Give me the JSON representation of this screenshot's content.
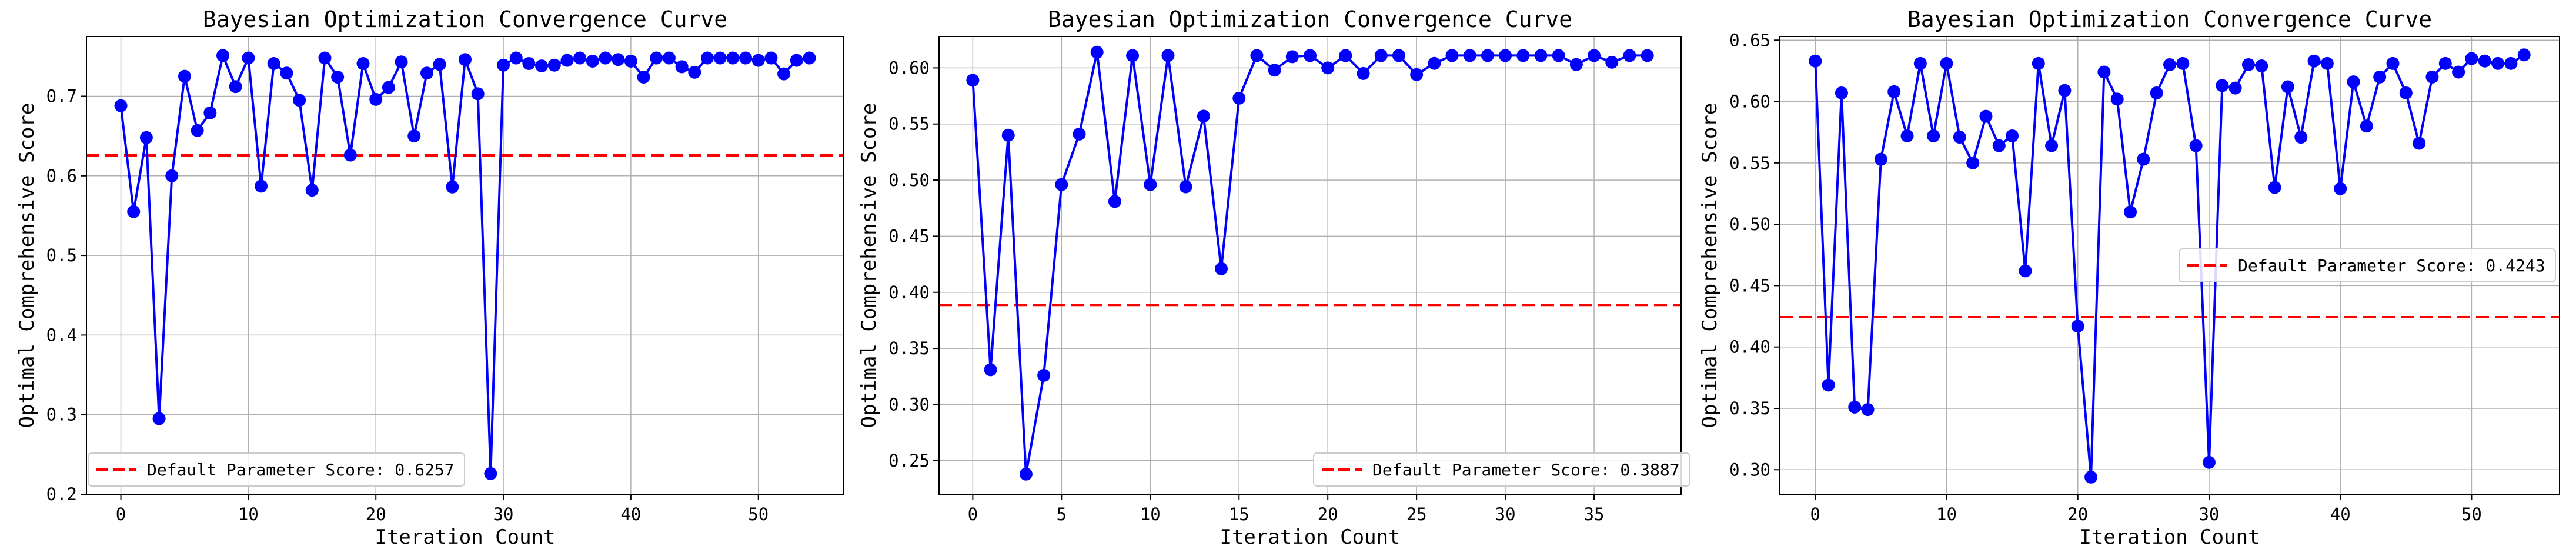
{
  "chart_data": [
    {
      "type": "line",
      "title": "Bayesian Optimization Convergence Curve",
      "xlabel": "Iteration Count",
      "ylabel": "Optimal Comprehensive Score",
      "xlim": [
        -2.7,
        56.7
      ],
      "ylim": [
        0.2,
        0.775
      ],
      "xticks": [
        0,
        10,
        20,
        30,
        40,
        50
      ],
      "yticks": [
        0.2,
        0.3,
        0.4,
        0.5,
        0.6,
        0.7
      ],
      "ytick_labels": [
        "0.2",
        "0.3",
        "0.4",
        "0.5",
        "0.6",
        "0.7"
      ],
      "grid": true,
      "legend_position": "lower-left",
      "series": [
        {
          "color": "#0000ff",
          "x": [
            0,
            1,
            2,
            3,
            4,
            5,
            6,
            7,
            8,
            9,
            10,
            11,
            12,
            13,
            14,
            15,
            16,
            17,
            18,
            19,
            20,
            21,
            22,
            23,
            24,
            25,
            26,
            27,
            28,
            29,
            30,
            31,
            32,
            33,
            34,
            35,
            36,
            37,
            38,
            39,
            40,
            41,
            42,
            43,
            44,
            45,
            46,
            47,
            48,
            49,
            50,
            51,
            52,
            53,
            54
          ],
          "y": [
            0.688,
            0.555,
            0.648,
            0.295,
            0.6,
            0.725,
            0.657,
            0.679,
            0.751,
            0.712,
            0.748,
            0.587,
            0.741,
            0.729,
            0.695,
            0.582,
            0.748,
            0.724,
            0.626,
            0.741,
            0.696,
            0.711,
            0.743,
            0.65,
            0.729,
            0.74,
            0.586,
            0.746,
            0.703,
            0.226,
            0.739,
            0.748,
            0.741,
            0.738,
            0.739,
            0.745,
            0.748,
            0.744,
            0.748,
            0.746,
            0.744,
            0.724,
            0.748,
            0.748,
            0.737,
            0.73,
            0.748,
            0.748,
            0.748,
            0.748,
            0.745,
            0.748,
            0.728,
            0.745,
            0.748
          ]
        }
      ],
      "reference": {
        "label": "Default Parameter Score: 0.6257",
        "value": 0.6257,
        "color": "#ff0000"
      }
    },
    {
      "type": "line",
      "title": "Bayesian Optimization Convergence Curve",
      "xlabel": "Iteration Count",
      "ylabel": "Optimal Comprehensive Score",
      "xlim": [
        -1.9,
        39.9
      ],
      "ylim": [
        0.22,
        0.628
      ],
      "xticks": [
        0,
        5,
        10,
        15,
        20,
        25,
        30,
        35
      ],
      "yticks": [
        0.25,
        0.3,
        0.35,
        0.4,
        0.45,
        0.5,
        0.55,
        0.6
      ],
      "ytick_labels": [
        "0.25",
        "0.30",
        "0.35",
        "0.40",
        "0.45",
        "0.50",
        "0.55",
        "0.60"
      ],
      "grid": true,
      "legend_position": "lower-right",
      "series": [
        {
          "color": "#0000ff",
          "x": [
            0,
            1,
            2,
            3,
            4,
            5,
            6,
            7,
            8,
            9,
            10,
            11,
            12,
            13,
            14,
            15,
            16,
            17,
            18,
            19,
            20,
            21,
            22,
            23,
            24,
            25,
            26,
            27,
            28,
            29,
            30,
            31,
            32,
            33,
            34,
            35,
            36,
            37,
            38
          ],
          "y": [
            0.589,
            0.331,
            0.54,
            0.238,
            0.326,
            0.496,
            0.541,
            0.614,
            0.481,
            0.611,
            0.496,
            0.611,
            0.494,
            0.557,
            0.421,
            0.573,
            0.611,
            0.598,
            0.61,
            0.611,
            0.6,
            0.611,
            0.595,
            0.611,
            0.611,
            0.594,
            0.604,
            0.611,
            0.611,
            0.611,
            0.611,
            0.611,
            0.611,
            0.611,
            0.603,
            0.611,
            0.605,
            0.611,
            0.611
          ]
        }
      ],
      "reference": {
        "label": "Default Parameter Score: 0.3887",
        "value": 0.3887,
        "color": "#ff0000"
      }
    },
    {
      "type": "line",
      "title": "Bayesian Optimization Convergence Curve",
      "xlabel": "Iteration Count",
      "ylabel": "Optimal Comprehensive Score",
      "xlim": [
        -2.7,
        56.7
      ],
      "ylim": [
        0.28,
        0.653
      ],
      "xticks": [
        0,
        10,
        20,
        30,
        40,
        50
      ],
      "yticks": [
        0.3,
        0.35,
        0.4,
        0.45,
        0.5,
        0.55,
        0.6,
        0.65
      ],
      "ytick_labels": [
        "0.30",
        "0.35",
        "0.40",
        "0.45",
        "0.50",
        "0.55",
        "0.60",
        "0.65"
      ],
      "grid": true,
      "legend_position": "center-right",
      "series": [
        {
          "color": "#0000ff",
          "x": [
            0,
            1,
            2,
            3,
            4,
            5,
            6,
            7,
            8,
            9,
            10,
            11,
            12,
            13,
            14,
            15,
            16,
            17,
            18,
            19,
            20,
            21,
            22,
            23,
            24,
            25,
            26,
            27,
            28,
            29,
            30,
            31,
            32,
            33,
            34,
            35,
            36,
            37,
            38,
            39,
            40,
            41,
            42,
            43,
            44,
            45,
            46,
            47,
            48,
            49,
            50,
            51,
            52,
            53,
            54
          ],
          "y": [
            0.633,
            0.369,
            0.607,
            0.351,
            0.349,
            0.553,
            0.608,
            0.572,
            0.631,
            0.572,
            0.631,
            0.571,
            0.55,
            0.588,
            0.564,
            0.572,
            0.462,
            0.631,
            0.564,
            0.609,
            0.417,
            0.294,
            0.624,
            0.602,
            0.51,
            0.553,
            0.607,
            0.63,
            0.631,
            0.564,
            0.306,
            0.613,
            0.611,
            0.63,
            0.629,
            0.53,
            0.612,
            0.571,
            0.633,
            0.631,
            0.529,
            0.616,
            0.58,
            0.62,
            0.631,
            0.607,
            0.566,
            0.62,
            0.631,
            0.624,
            0.635,
            0.633,
            0.631,
            0.631,
            0.638
          ]
        }
      ],
      "reference": {
        "label": "Default Parameter Score: 0.4243",
        "value": 0.4243,
        "color": "#ff0000"
      }
    }
  ]
}
